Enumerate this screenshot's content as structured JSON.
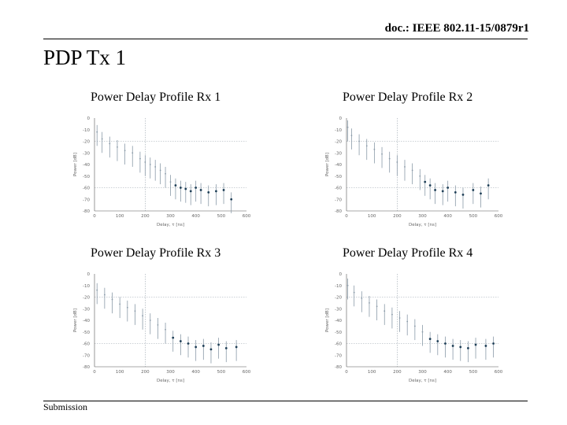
{
  "header": {
    "doc_id": "doc.: IEEE 802.11-15/0879r1"
  },
  "slide": {
    "title": "PDP Tx 1"
  },
  "footer": {
    "label": "Submission"
  },
  "colors": {
    "stem": "#8a9aa8",
    "dot": "#1f3f57",
    "grid": "#9aa4ad"
  },
  "chart_data": [
    {
      "type": "scatter",
      "title": "Power Delay Profile Rx 1",
      "xlabel": "Delay, τ [ns]",
      "ylabel": "Power [dB]",
      "xlim": [
        0,
        600
      ],
      "ylim": [
        -80,
        0
      ],
      "xticks": [
        0,
        100,
        200,
        300,
        400,
        500,
        600
      ],
      "yticks": [
        0,
        -10,
        -20,
        -30,
        -40,
        -50,
        -60,
        -70,
        -80
      ],
      "grid": "dotted",
      "series": [
        {
          "x": [
            10,
            30,
            60,
            90,
            120,
            150,
            180,
            200,
            220,
            240,
            260,
            280,
            300,
            320,
            340,
            360,
            380,
            400,
            420,
            450,
            480,
            510,
            540
          ],
          "values": [
            -12,
            -18,
            -22,
            -25,
            -28,
            -30,
            -35,
            -38,
            -40,
            -42,
            -45,
            -48,
            -55,
            -58,
            -60,
            -61,
            -63,
            -60,
            -62,
            -64,
            -63,
            -62,
            -70
          ]
        }
      ]
    },
    {
      "type": "scatter",
      "title": "Power Delay Profile Rx 2",
      "xlabel": "Delay, τ [ns]",
      "ylabel": "Power [dB]",
      "xlim": [
        0,
        600
      ],
      "ylim": [
        -80,
        0
      ],
      "xticks": [
        0,
        100,
        200,
        300,
        400,
        500,
        600
      ],
      "yticks": [
        0,
        -10,
        -20,
        -30,
        -40,
        -50,
        -60,
        -70,
        -80
      ],
      "grid": "dotted",
      "series": [
        {
          "x": [
            5,
            20,
            50,
            80,
            110,
            140,
            170,
            200,
            230,
            260,
            290,
            310,
            330,
            350,
            380,
            400,
            430,
            460,
            500,
            530,
            560
          ],
          "values": [
            -8,
            -15,
            -20,
            -24,
            -27,
            -31,
            -35,
            -38,
            -42,
            -45,
            -50,
            -55,
            -58,
            -62,
            -63,
            -60,
            -64,
            -66,
            -62,
            -65,
            -58
          ]
        }
      ]
    },
    {
      "type": "scatter",
      "title": "Power Delay Profile Rx 3",
      "xlabel": "Delay, τ [ns]",
      "ylabel": "Power [dB]",
      "xlim": [
        0,
        600
      ],
      "ylim": [
        -80,
        0
      ],
      "xticks": [
        0,
        100,
        200,
        300,
        400,
        500,
        600
      ],
      "yticks": [
        0,
        -10,
        -20,
        -30,
        -40,
        -50,
        -60,
        -70,
        -80
      ],
      "grid": "dotted",
      "series": [
        {
          "x": [
            10,
            40,
            70,
            100,
            130,
            160,
            190,
            220,
            250,
            280,
            310,
            340,
            370,
            400,
            430,
            460,
            490,
            520,
            560
          ],
          "values": [
            -14,
            -18,
            -22,
            -26,
            -29,
            -32,
            -36,
            -40,
            -44,
            -48,
            -55,
            -58,
            -60,
            -63,
            -62,
            -65,
            -61,
            -64,
            -63
          ]
        }
      ]
    },
    {
      "type": "scatter",
      "title": "Power Delay Profile Rx 4",
      "xlabel": "Delay, τ [ns]",
      "ylabel": "Power [dB]",
      "xlim": [
        0,
        600
      ],
      "ylim": [
        -80,
        0
      ],
      "xticks": [
        0,
        100,
        200,
        300,
        400,
        500,
        600
      ],
      "yticks": [
        0,
        -10,
        -20,
        -30,
        -40,
        -50,
        -60,
        -70,
        -80
      ],
      "grid": "dotted",
      "series": [
        {
          "x": [
            5,
            30,
            60,
            90,
            120,
            150,
            180,
            210,
            240,
            270,
            300,
            330,
            360,
            390,
            420,
            450,
            480,
            510,
            550,
            580
          ],
          "values": [
            -10,
            -16,
            -21,
            -25,
            -28,
            -32,
            -35,
            -38,
            -41,
            -45,
            -50,
            -56,
            -58,
            -60,
            -62,
            -63,
            -64,
            -61,
            -62,
            -60
          ]
        }
      ]
    }
  ]
}
